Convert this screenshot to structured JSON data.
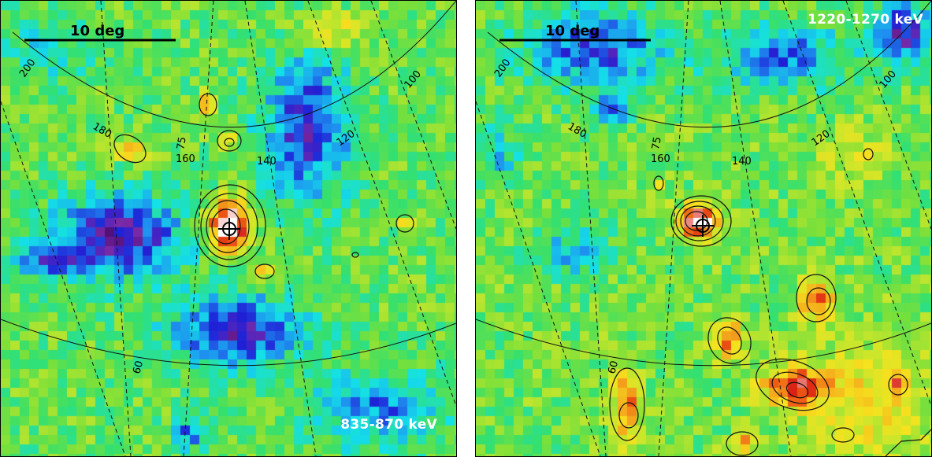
{
  "panels": [
    {
      "energy_label": "835-870 keV",
      "scale_label": "10 deg",
      "grid_labels": [
        "200",
        "180",
        "160",
        "140",
        "120",
        "100",
        "75",
        "60"
      ]
    },
    {
      "energy_label": "1220-1270 keV",
      "scale_label": "10 deg",
      "grid_labels": [
        "200",
        "180",
        "160",
        "140",
        "120",
        "100",
        "75",
        "60"
      ]
    }
  ],
  "colormap": [
    "#4a0a6e",
    "#7a2aa8",
    "#1f1fd6",
    "#1e8ff0",
    "#14e0e8",
    "#33e070",
    "#7ae03a",
    "#cfe62a",
    "#f6e21e",
    "#f4a41c",
    "#ee5a14",
    "#d81e14",
    "#ffffff"
  ]
}
